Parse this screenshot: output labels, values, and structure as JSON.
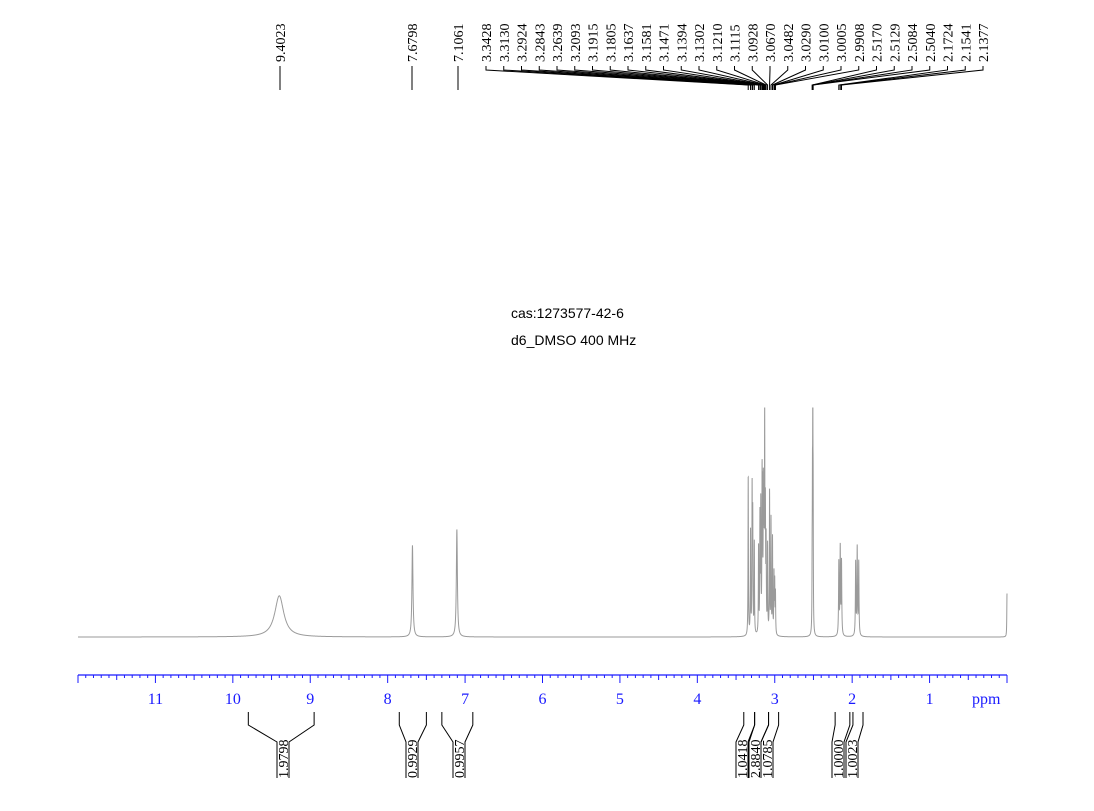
{
  "chart_data": {
    "type": "line",
    "title_lines": [
      "cas:1273577-42-6",
      "d6_DMSO  400 MHz"
    ],
    "xlabel": "ppm",
    "xlim": [
      12,
      0
    ],
    "x_ticks": [
      "11",
      "10",
      "9",
      "8",
      "7",
      "6",
      "5",
      "4",
      "3",
      "2",
      "1"
    ],
    "grid": false,
    "line_color": "#9a9a9a",
    "axis_color": "#1a1aff",
    "peak_labels": [
      "9.4023",
      "7.6798",
      "7.1061",
      "3.3428",
      "3.3130",
      "3.2924",
      "3.2843",
      "3.2639",
      "3.2093",
      "3.1915",
      "3.1805",
      "3.1637",
      "3.1581",
      "3.1471",
      "3.1394",
      "3.1302",
      "3.1210",
      "3.1115",
      "3.0928",
      "3.0670",
      "3.0482",
      "3.0290",
      "3.0100",
      "3.0005",
      "2.9908",
      "2.5170",
      "2.5129",
      "2.5084",
      "2.5040",
      "2.1724",
      "2.1541",
      "2.1377"
    ],
    "integrals": [
      {
        "from": 9.8,
        "to": 8.95,
        "value": "1.9798"
      },
      {
        "from": 7.85,
        "to": 7.5,
        "value": "0.9929"
      },
      {
        "from": 7.3,
        "to": 6.9,
        "value": "0.9957"
      },
      {
        "from": 3.4,
        "to": 3.26,
        "value": "1.0418"
      },
      {
        "from": 3.26,
        "to": 3.08,
        "value": "2.8840"
      },
      {
        "from": 3.08,
        "to": 2.95,
        "value": "1.0785"
      },
      {
        "from": 2.22,
        "to": 2.03,
        "value": "1.0000"
      },
      {
        "from": 1.99,
        "to": 1.86,
        "value": "1.0023"
      }
    ],
    "peaks": [
      {
        "ppm": 9.4,
        "intensity": 0.18,
        "hwhm": 0.07
      },
      {
        "ppm": 7.6798,
        "intensity": 0.4,
        "hwhm": 0.008
      },
      {
        "ppm": 7.1061,
        "intensity": 0.47,
        "hwhm": 0.008
      },
      {
        "ppm": 3.3428,
        "intensity": 0.7,
        "hwhm": 0.003
      },
      {
        "ppm": 3.313,
        "intensity": 0.45,
        "hwhm": 0.003
      },
      {
        "ppm": 3.2924,
        "intensity": 0.62,
        "hwhm": 0.003
      },
      {
        "ppm": 3.2843,
        "intensity": 0.5,
        "hwhm": 0.003
      },
      {
        "ppm": 3.2639,
        "intensity": 0.4,
        "hwhm": 0.003
      },
      {
        "ppm": 3.2093,
        "intensity": 0.38,
        "hwhm": 0.003
      },
      {
        "ppm": 3.1915,
        "intensity": 0.5,
        "hwhm": 0.003
      },
      {
        "ppm": 3.1805,
        "intensity": 0.55,
        "hwhm": 0.003
      },
      {
        "ppm": 3.1637,
        "intensity": 0.6,
        "hwhm": 0.003
      },
      {
        "ppm": 3.1581,
        "intensity": 0.5,
        "hwhm": 0.003
      },
      {
        "ppm": 3.1471,
        "intensity": 0.58,
        "hwhm": 0.003
      },
      {
        "ppm": 3.1394,
        "intensity": 0.45,
        "hwhm": 0.003
      },
      {
        "ppm": 3.1302,
        "intensity": 0.9,
        "hwhm": 0.003
      },
      {
        "ppm": 3.121,
        "intensity": 0.5,
        "hwhm": 0.003
      },
      {
        "ppm": 3.1115,
        "intensity": 0.38,
        "hwhm": 0.003
      },
      {
        "ppm": 3.0928,
        "intensity": 0.38,
        "hwhm": 0.003
      },
      {
        "ppm": 3.067,
        "intensity": 0.62,
        "hwhm": 0.003
      },
      {
        "ppm": 3.0482,
        "intensity": 0.5,
        "hwhm": 0.003
      },
      {
        "ppm": 3.029,
        "intensity": 0.42,
        "hwhm": 0.003
      },
      {
        "ppm": 3.01,
        "intensity": 0.26,
        "hwhm": 0.003
      },
      {
        "ppm": 3.0005,
        "intensity": 0.22,
        "hwhm": 0.003
      },
      {
        "ppm": 2.9908,
        "intensity": 0.18,
        "hwhm": 0.003
      },
      {
        "ppm": 2.517,
        "intensity": 0.25,
        "hwhm": 0.0025
      },
      {
        "ppm": 2.5129,
        "intensity": 0.5,
        "hwhm": 0.0025
      },
      {
        "ppm": 2.5084,
        "intensity": 0.9,
        "hwhm": 0.0025
      },
      {
        "ppm": 2.504,
        "intensity": 0.5,
        "hwhm": 0.0025
      },
      {
        "ppm": 2.1724,
        "intensity": 0.32,
        "hwhm": 0.004
      },
      {
        "ppm": 2.1541,
        "intensity": 0.38,
        "hwhm": 0.004
      },
      {
        "ppm": 2.1377,
        "intensity": 0.32,
        "hwhm": 0.004
      },
      {
        "ppm": 1.955,
        "intensity": 0.32,
        "hwhm": 0.004
      },
      {
        "ppm": 1.935,
        "intensity": 0.38,
        "hwhm": 0.004
      },
      {
        "ppm": 1.915,
        "intensity": 0.32,
        "hwhm": 0.004
      },
      {
        "ppm": 0.0,
        "intensity": 0.19,
        "hwhm": 0.003
      }
    ]
  }
}
